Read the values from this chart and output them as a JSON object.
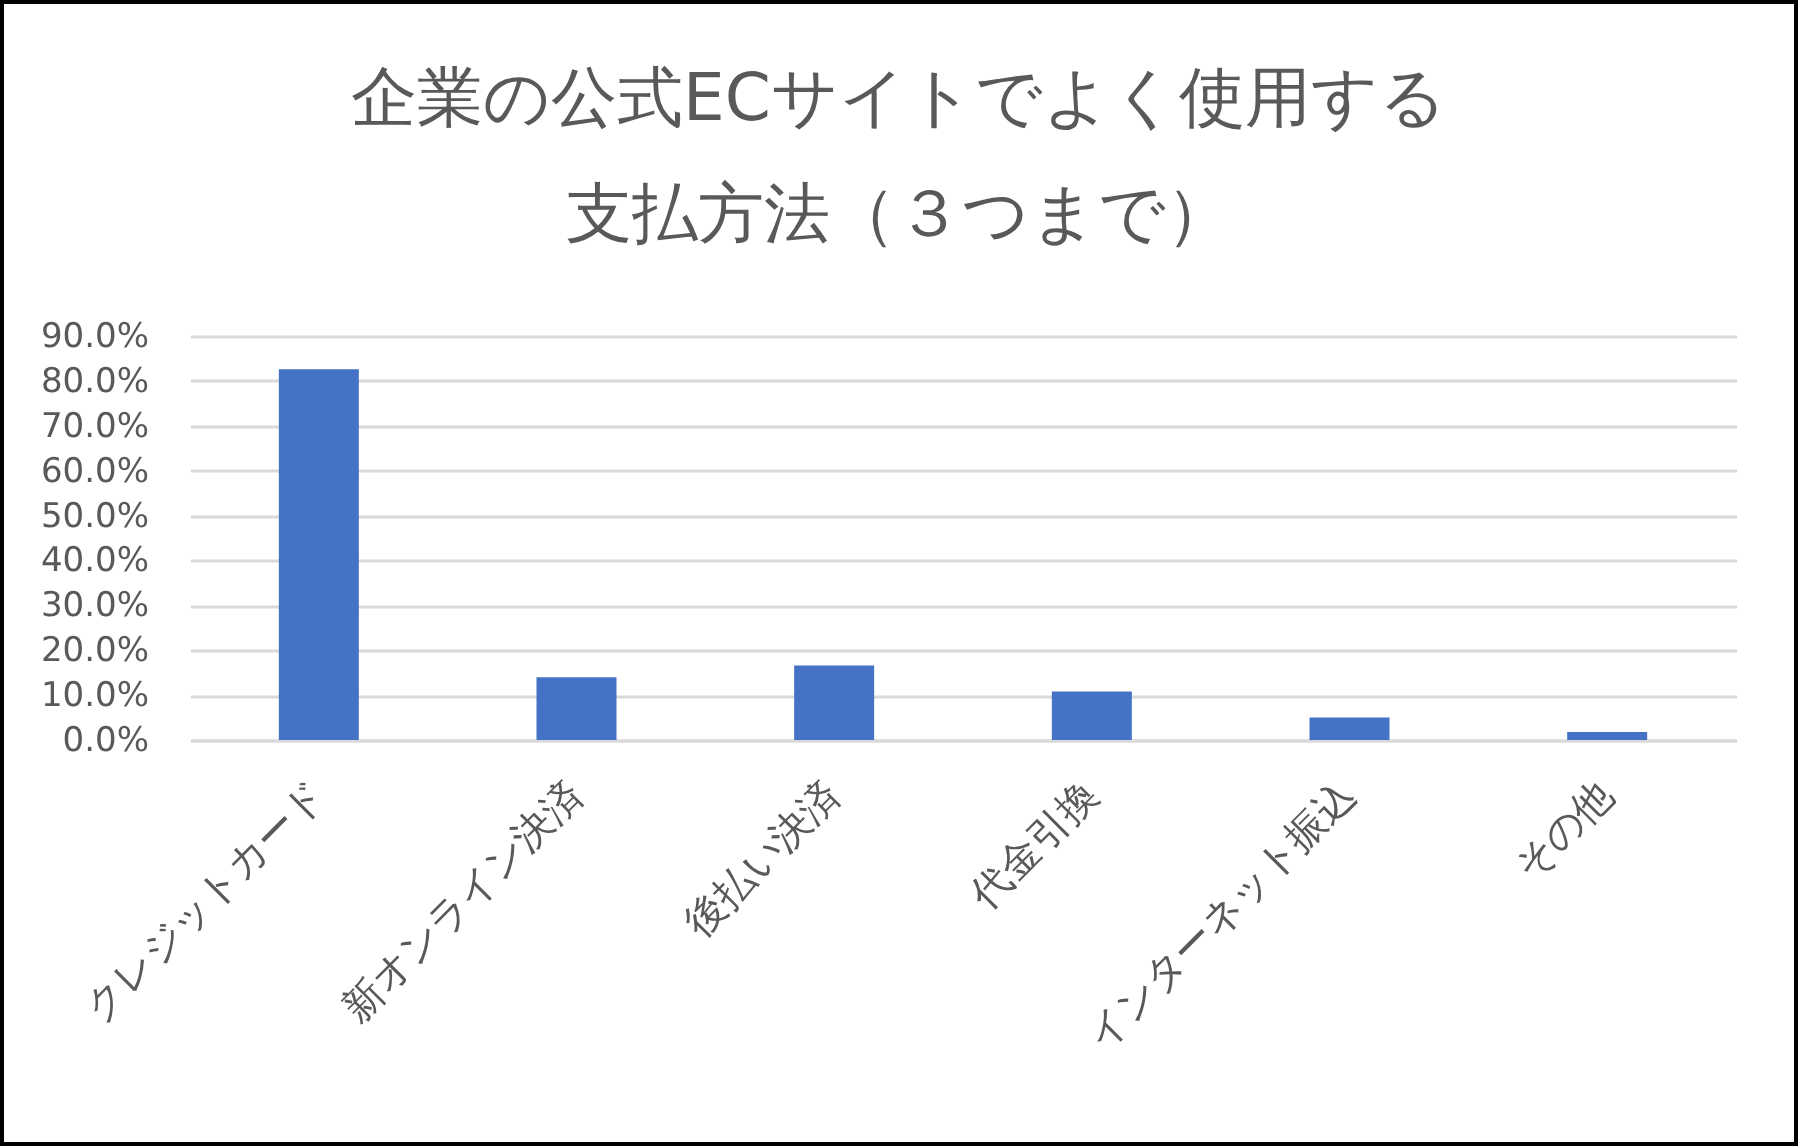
{
  "chart_data": {
    "type": "bar",
    "title": "企業の公式ECサイトでよく使用する支払方法（３つまで）",
    "categories": [
      "クレジットカード",
      "新オンライン決済",
      "後払い決済",
      "代金引換",
      "インターネット振込",
      "その他"
    ],
    "values": [
      82.6,
      14.0,
      16.6,
      10.8,
      5.0,
      1.8
    ],
    "color": "#4472c4",
    "ylim": [
      0,
      90
    ],
    "yticks": [
      {
        "value": 0,
        "label": "0.0%"
      },
      {
        "value": 10,
        "label": "10.0%"
      },
      {
        "value": 20,
        "label": "20.0%"
      },
      {
        "value": 30,
        "label": "30.0%"
      },
      {
        "value": 40,
        "label": "40.0%"
      },
      {
        "value": 50,
        "label": "50.0%"
      },
      {
        "value": 60,
        "label": "60.0%"
      },
      {
        "value": 70,
        "label": "70.0%"
      },
      {
        "value": 80,
        "label": "80.0%"
      },
      {
        "value": 90,
        "label": "90.0%"
      }
    ],
    "grid": "y"
  }
}
